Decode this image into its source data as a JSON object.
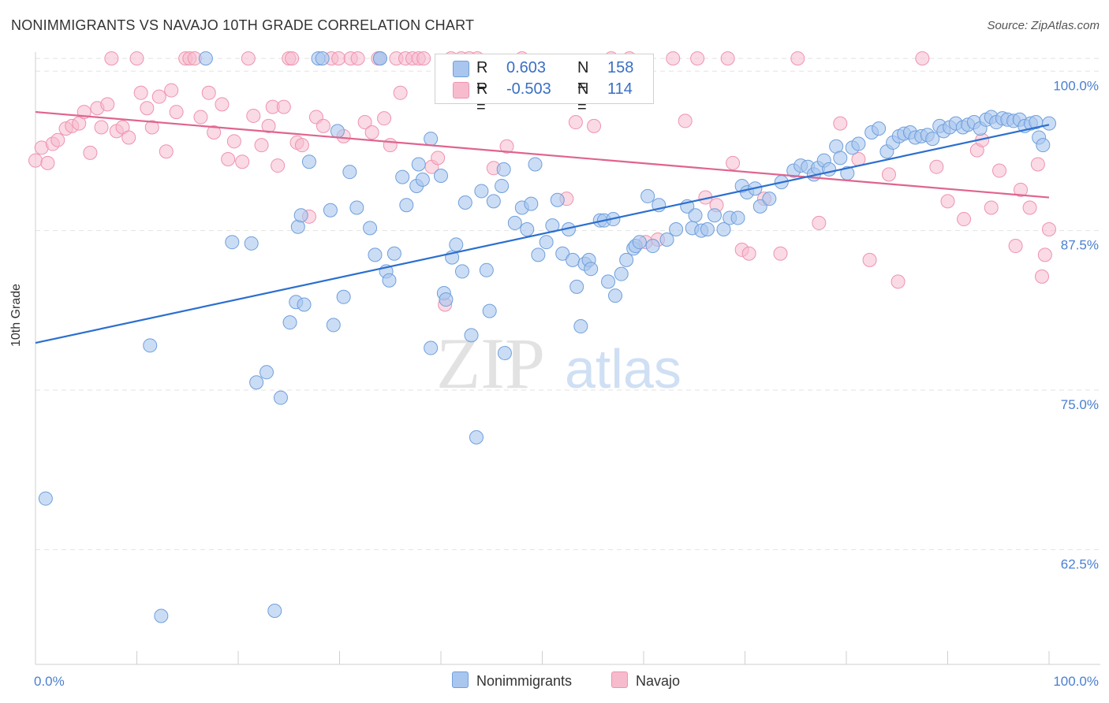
{
  "title": "NONIMMIGRANTS VS NAVAJO 10TH GRADE CORRELATION CHART",
  "source": "Source: ZipAtlas.com",
  "watermark": {
    "zip": "ZIP",
    "atlas": "atlas"
  },
  "legend": {
    "rows": [
      {
        "r_label": "R =",
        "r_value": "0.603",
        "n_label": "N =",
        "n_value": "158"
      },
      {
        "r_label": "R =",
        "r_value": "-0.503",
        "n_label": "N =",
        "n_value": "114"
      }
    ]
  },
  "bottom_legend": [
    "Nonimmigrants",
    "Navajo"
  ],
  "colors": {
    "blue_fill": "#a9c6ef",
    "blue_stroke": "#6f9fdc",
    "blue_line": "#2b6fcf",
    "pink_fill": "#f6bccd",
    "pink_stroke": "#ef93ae",
    "pink_line": "#e0648e",
    "grid": "#e2e2e2",
    "tick_text": "#4a7fd0"
  },
  "chart_data": {
    "type": "scatter",
    "title": "NONIMMIGRANTS VS NAVAJO 10TH GRADE CORRELATION CHART",
    "xlabel": "",
    "ylabel": "10th Grade",
    "xlim": [
      0,
      100
    ],
    "ylim": [
      53.5,
      101.5
    ],
    "x_tick_labels": [
      "0.0%",
      "100.0%"
    ],
    "y_ticks": [
      62.5,
      75.0,
      87.5,
      100.0
    ],
    "y_tick_labels": [
      "62.5%",
      "75.0%",
      "87.5%",
      "100.0%"
    ],
    "grid": true,
    "legend_position": "top-center",
    "series": [
      {
        "name": "Nonimmigrants",
        "r": 0.603,
        "n": 158,
        "trend": {
          "x": [
            0,
            100
          ],
          "y": [
            78.7,
            95.8
          ]
        },
        "points": [
          [
            1,
            66.5
          ],
          [
            11.3,
            78.5
          ],
          [
            12.4,
            57.3
          ],
          [
            16.8,
            101
          ],
          [
            19.4,
            86.6
          ],
          [
            21.3,
            86.5
          ],
          [
            21.8,
            75.6
          ],
          [
            22.8,
            76.4
          ],
          [
            23.6,
            57.7
          ],
          [
            24.2,
            74.4
          ],
          [
            25.1,
            80.3
          ],
          [
            25.7,
            81.9
          ],
          [
            25.9,
            87.8
          ],
          [
            26.2,
            88.7
          ],
          [
            26.5,
            81.7
          ],
          [
            27,
            92.9
          ],
          [
            27.9,
            101
          ],
          [
            28.3,
            101
          ],
          [
            29.1,
            89.1
          ],
          [
            29.4,
            80.1
          ],
          [
            29.8,
            95.3
          ],
          [
            30.4,
            82.3
          ],
          [
            31,
            92.1
          ],
          [
            31.7,
            89.3
          ],
          [
            33,
            87.7
          ],
          [
            33.5,
            85.6
          ],
          [
            34,
            101
          ],
          [
            34,
            101
          ],
          [
            34.6,
            84.3
          ],
          [
            34.9,
            83.6
          ],
          [
            35.4,
            85.7
          ],
          [
            36.2,
            91.7
          ],
          [
            36.6,
            89.5
          ],
          [
            37.6,
            91
          ],
          [
            37.8,
            92.7
          ],
          [
            38.2,
            91.5
          ],
          [
            39,
            94.7
          ],
          [
            39,
            78.3
          ],
          [
            40,
            91.8
          ],
          [
            40.3,
            82.6
          ],
          [
            40.5,
            82.1
          ],
          [
            41.1,
            85.4
          ],
          [
            41.5,
            86.4
          ],
          [
            42.1,
            84.3
          ],
          [
            42.4,
            89.7
          ],
          [
            43,
            79.3
          ],
          [
            43.5,
            71.3
          ],
          [
            44,
            90.6
          ],
          [
            44.5,
            84.4
          ],
          [
            44.8,
            81.2
          ],
          [
            45.2,
            89.8
          ],
          [
            46,
            91
          ],
          [
            46.2,
            92.3
          ],
          [
            46.3,
            77.9
          ],
          [
            47.3,
            88.1
          ],
          [
            48,
            89.3
          ],
          [
            48.5,
            87.6
          ],
          [
            48.9,
            89.6
          ],
          [
            49.3,
            92.7
          ],
          [
            49.6,
            85.6
          ],
          [
            50.4,
            86.6
          ],
          [
            51,
            87.9
          ],
          [
            51.5,
            89.9
          ],
          [
            52,
            85.7
          ],
          [
            52.6,
            87.6
          ],
          [
            53,
            85.2
          ],
          [
            53.4,
            83.1
          ],
          [
            53.8,
            80
          ],
          [
            54.2,
            84.9
          ],
          [
            54.6,
            85.2
          ],
          [
            54.8,
            84.5
          ],
          [
            55.7,
            88.3
          ],
          [
            56.1,
            88.3
          ],
          [
            56.5,
            83.5
          ],
          [
            57,
            88.4
          ],
          [
            57.2,
            82.4
          ],
          [
            57.8,
            84.1
          ],
          [
            58.3,
            85.2
          ],
          [
            59,
            86.1
          ],
          [
            59.2,
            86.3
          ],
          [
            59.6,
            86.6
          ],
          [
            60.4,
            90.2
          ],
          [
            60.9,
            86.3
          ],
          [
            61.5,
            89.5
          ],
          [
            62.3,
            86.8
          ],
          [
            63.2,
            87.6
          ],
          [
            64.3,
            89.4
          ],
          [
            64.8,
            87.7
          ],
          [
            65.1,
            88.7
          ],
          [
            65.7,
            87.5
          ],
          [
            66.3,
            87.6
          ],
          [
            67,
            88.7
          ],
          [
            67.9,
            87.6
          ],
          [
            68.5,
            88.5
          ],
          [
            69.3,
            88.5
          ],
          [
            69.7,
            91
          ],
          [
            70.2,
            90.5
          ],
          [
            71,
            90.8
          ],
          [
            71.5,
            89.4
          ],
          [
            72.4,
            90
          ],
          [
            73.6,
            91.3
          ],
          [
            74.8,
            92.2
          ],
          [
            75.5,
            92.6
          ],
          [
            76.2,
            92.5
          ],
          [
            76.8,
            91.9
          ],
          [
            77.2,
            92.4
          ],
          [
            77.8,
            93
          ],
          [
            78.3,
            92.3
          ],
          [
            79,
            94.1
          ],
          [
            79.4,
            93.2
          ],
          [
            80.1,
            92
          ],
          [
            80.6,
            94
          ],
          [
            81.2,
            94.3
          ],
          [
            82.5,
            95.2
          ],
          [
            83.2,
            95.5
          ],
          [
            84,
            93.7
          ],
          [
            84.6,
            94.4
          ],
          [
            85.2,
            94.9
          ],
          [
            85.7,
            95.1
          ],
          [
            86.3,
            95.2
          ],
          [
            86.8,
            94.8
          ],
          [
            87.4,
            94.9
          ],
          [
            88,
            95
          ],
          [
            88.5,
            94.7
          ],
          [
            89.2,
            95.7
          ],
          [
            89.6,
            95.3
          ],
          [
            90.2,
            95.6
          ],
          [
            90.8,
            95.9
          ],
          [
            91.5,
            95.6
          ],
          [
            92,
            95.8
          ],
          [
            92.6,
            96
          ],
          [
            93.2,
            95.5
          ],
          [
            93.8,
            96.2
          ],
          [
            94.3,
            96.4
          ],
          [
            94.8,
            96
          ],
          [
            95.4,
            96.3
          ],
          [
            95.9,
            96.2
          ],
          [
            96.5,
            96.1
          ],
          [
            97.1,
            96.2
          ],
          [
            97.6,
            95.7
          ],
          [
            98.2,
            95.9
          ],
          [
            98.7,
            96
          ],
          [
            99,
            94.8
          ],
          [
            99.4,
            94.2
          ],
          [
            100,
            95.9
          ]
        ]
      },
      {
        "name": "Navajo",
        "r": -0.503,
        "n": 114,
        "trend": {
          "x": [
            0,
            100
          ],
          "y": [
            96.8,
            90.1
          ]
        },
        "points": [
          [
            0,
            93
          ],
          [
            0.6,
            94
          ],
          [
            1.2,
            92.8
          ],
          [
            1.7,
            94.3
          ],
          [
            2.2,
            94.6
          ],
          [
            3,
            95.5
          ],
          [
            3.6,
            95.7
          ],
          [
            4.3,
            95.9
          ],
          [
            4.8,
            96.8
          ],
          [
            5.4,
            93.6
          ],
          [
            6.1,
            97.1
          ],
          [
            6.5,
            95.6
          ],
          [
            7.1,
            97.4
          ],
          [
            7.5,
            101
          ],
          [
            8,
            95.3
          ],
          [
            8.6,
            95.6
          ],
          [
            9.2,
            94.8
          ],
          [
            10,
            101
          ],
          [
            10.4,
            98.3
          ],
          [
            11,
            97.1
          ],
          [
            11.5,
            95.6
          ],
          [
            12.2,
            98
          ],
          [
            12.9,
            93.7
          ],
          [
            13.4,
            98.5
          ],
          [
            13.9,
            96.8
          ],
          [
            14.8,
            101
          ],
          [
            15.2,
            101
          ],
          [
            15.7,
            101
          ],
          [
            16.3,
            96.4
          ],
          [
            17.1,
            98.3
          ],
          [
            17.6,
            95.2
          ],
          [
            18.4,
            97.4
          ],
          [
            19,
            93.1
          ],
          [
            19.6,
            94.5
          ],
          [
            20.4,
            92.9
          ],
          [
            21,
            101
          ],
          [
            21.5,
            96.5
          ],
          [
            22.3,
            94.2
          ],
          [
            23,
            95.7
          ],
          [
            23.4,
            97.2
          ],
          [
            23.9,
            92.6
          ],
          [
            24.5,
            97.2
          ],
          [
            25,
            101
          ],
          [
            25.3,
            101
          ],
          [
            25.8,
            94.4
          ],
          [
            26.3,
            94.2
          ],
          [
            27,
            88.6
          ],
          [
            27.7,
            96.4
          ],
          [
            28.4,
            95.7
          ],
          [
            29.2,
            101
          ],
          [
            29.9,
            101
          ],
          [
            30.4,
            94.9
          ],
          [
            31.1,
            101
          ],
          [
            31.8,
            101
          ],
          [
            32.5,
            96
          ],
          [
            33.2,
            95.2
          ],
          [
            33.8,
            101
          ],
          [
            34.4,
            96.3
          ],
          [
            35,
            94.2
          ],
          [
            35.6,
            101
          ],
          [
            36,
            98.3
          ],
          [
            36.5,
            101
          ],
          [
            37.2,
            101
          ],
          [
            37.8,
            101
          ],
          [
            38.3,
            101
          ],
          [
            39.1,
            92.5
          ],
          [
            39.7,
            93.2
          ],
          [
            40.4,
            81.7
          ],
          [
            41,
            101
          ],
          [
            42,
            101
          ],
          [
            42.8,
            101
          ],
          [
            43.6,
            101
          ],
          [
            45.2,
            92.4
          ],
          [
            46.5,
            94.1
          ],
          [
            48,
            101
          ],
          [
            52.4,
            90
          ],
          [
            53.3,
            96
          ],
          [
            55.1,
            95.7
          ],
          [
            56.8,
            101
          ],
          [
            58.6,
            101
          ],
          [
            60.2,
            86.6
          ],
          [
            61.4,
            86.8
          ],
          [
            62.9,
            101
          ],
          [
            64.1,
            96.1
          ],
          [
            65.3,
            101
          ],
          [
            66.1,
            90.1
          ],
          [
            67.2,
            89.5
          ],
          [
            68.3,
            101
          ],
          [
            68.8,
            92.8
          ],
          [
            69.7,
            86
          ],
          [
            70.4,
            85.7
          ],
          [
            71.9,
            90
          ],
          [
            73.5,
            85.7
          ],
          [
            75.2,
            101
          ],
          [
            77.3,
            88.1
          ],
          [
            79.4,
            95.9
          ],
          [
            81.2,
            93.1
          ],
          [
            82.3,
            85.2
          ],
          [
            84.2,
            91.9
          ],
          [
            85.1,
            83.5
          ],
          [
            87.5,
            101
          ],
          [
            88.9,
            92.5
          ],
          [
            90,
            89.8
          ],
          [
            91.6,
            88.4
          ],
          [
            92.9,
            93.8
          ],
          [
            93.4,
            94.6
          ],
          [
            94.3,
            89.3
          ],
          [
            95.1,
            92.2
          ],
          [
            96.7,
            86.3
          ],
          [
            97.2,
            90.7
          ],
          [
            98.1,
            89.3
          ],
          [
            98.9,
            92.7
          ],
          [
            99.3,
            83.9
          ],
          [
            99.6,
            85.6
          ],
          [
            100,
            87.6
          ]
        ]
      }
    ]
  }
}
